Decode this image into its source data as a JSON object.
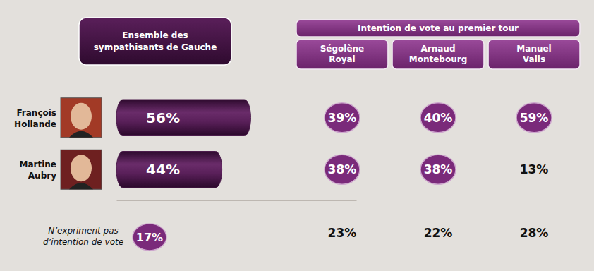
{
  "chart_data": {
    "type": "bar",
    "orientation": "horizontal",
    "title": "Ensemble des sympathisants de Gauche",
    "categories": [
      "François Hollande",
      "Martine Aubry"
    ],
    "values": [
      56,
      44
    ],
    "value_labels": [
      "56%",
      "44%"
    ],
    "color": "#4a1a4a",
    "data_labels": true,
    "tick_labels": false,
    "xlim": [
      0,
      100
    ],
    "xticks": []
  },
  "table": {
    "title": "Intention de vote au premier tour",
    "columns": [
      "Ségolène Royal",
      "Arnaud Montebourg",
      "Manuel Valls"
    ],
    "rows": [
      [
        "39%",
        "40%",
        "59%"
      ],
      [
        "38%",
        "38%",
        "13%"
      ]
    ],
    "highlighted": [
      [
        true,
        true,
        true
      ],
      [
        true,
        true,
        false
      ]
    ]
  },
  "no_intention": {
    "label": "N’expriment pas d’intention de vote",
    "overall": "17%",
    "values": [
      "23%",
      "22%",
      "28%"
    ]
  }
}
